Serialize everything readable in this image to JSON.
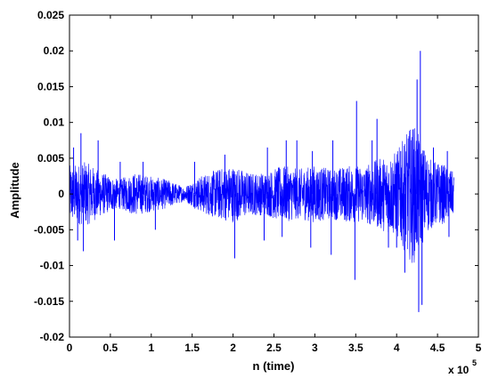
{
  "chart_data": {
    "type": "line",
    "title": "",
    "xlabel": "n (time)",
    "ylabel": "Amplitude",
    "x_multiplier_label": "x 10",
    "x_multiplier_exponent": "5",
    "xlim": [
      0,
      5
    ],
    "ylim": [
      -0.02,
      0.025
    ],
    "x_ticks": [
      "0",
      "0.5",
      "1",
      "1.5",
      "2",
      "2.5",
      "3",
      "3.5",
      "4",
      "4.5",
      "5"
    ],
    "y_ticks": [
      "-0.02",
      "-0.015",
      "-0.01",
      "-0.005",
      "0",
      "0.005",
      "0.01",
      "0.015",
      "0.02",
      "0.025"
    ],
    "grid": false,
    "line_color": "#0000ff",
    "series": [
      {
        "x": [
          0,
          0.2,
          0.4,
          0.6,
          0.8,
          1.0,
          1.2,
          1.4,
          1.6,
          1.8,
          2.0,
          2.2,
          2.4,
          2.6,
          2.8,
          3.0,
          3.2,
          3.4,
          3.6,
          3.8,
          4.0,
          4.2,
          4.4,
          4.6,
          4.7
        ],
        "envelope_max": [
          0.004,
          0.0045,
          0.003,
          0.002,
          0.003,
          0.0025,
          0.002,
          0.001,
          0.0025,
          0.0035,
          0.004,
          0.003,
          0.003,
          0.004,
          0.0035,
          0.004,
          0.0035,
          0.004,
          0.004,
          0.005,
          0.006,
          0.01,
          0.005,
          0.004,
          0.003
        ],
        "envelope_min": [
          -0.004,
          -0.0045,
          -0.003,
          -0.002,
          -0.003,
          -0.0025,
          -0.002,
          -0.001,
          -0.0025,
          -0.0035,
          -0.004,
          -0.003,
          -0.003,
          -0.004,
          -0.0035,
          -0.004,
          -0.0035,
          -0.004,
          -0.004,
          -0.005,
          -0.006,
          -0.01,
          -0.005,
          -0.004,
          -0.003
        ]
      }
    ],
    "spikes": [
      {
        "x": 0.05,
        "y": 0.0065
      },
      {
        "x": 0.1,
        "y": -0.0065
      },
      {
        "x": 0.14,
        "y": 0.0085
      },
      {
        "x": 0.17,
        "y": -0.008
      },
      {
        "x": 0.35,
        "y": 0.0075
      },
      {
        "x": 0.55,
        "y": -0.0065
      },
      {
        "x": 0.62,
        "y": 0.0045
      },
      {
        "x": 0.9,
        "y": 0.0045
      },
      {
        "x": 1.05,
        "y": -0.005
      },
      {
        "x": 1.53,
        "y": 0.0045
      },
      {
        "x": 1.9,
        "y": 0.0055
      },
      {
        "x": 2.02,
        "y": -0.009
      },
      {
        "x": 2.38,
        "y": -0.0065
      },
      {
        "x": 2.42,
        "y": 0.0065
      },
      {
        "x": 2.6,
        "y": -0.006
      },
      {
        "x": 2.65,
        "y": 0.0075
      },
      {
        "x": 2.78,
        "y": 0.0075
      },
      {
        "x": 2.95,
        "y": -0.0075
      },
      {
        "x": 2.97,
        "y": 0.006
      },
      {
        "x": 3.2,
        "y": -0.0085
      },
      {
        "x": 3.22,
        "y": 0.0075
      },
      {
        "x": 3.49,
        "y": -0.012
      },
      {
        "x": 3.51,
        "y": 0.013
      },
      {
        "x": 3.7,
        "y": 0.0075
      },
      {
        "x": 3.76,
        "y": 0.0105
      },
      {
        "x": 3.9,
        "y": -0.0075
      },
      {
        "x": 4.0,
        "y": -0.0075
      },
      {
        "x": 4.05,
        "y": 0.006
      },
      {
        "x": 4.1,
        "y": -0.011
      },
      {
        "x": 4.18,
        "y": 0.0075
      },
      {
        "x": 4.25,
        "y": 0.016
      },
      {
        "x": 4.27,
        "y": -0.0165
      },
      {
        "x": 4.29,
        "y": 0.02
      },
      {
        "x": 4.31,
        "y": -0.0155
      },
      {
        "x": 4.45,
        "y": 0.0065
      },
      {
        "x": 4.62,
        "y": 0.006
      },
      {
        "x": 4.64,
        "y": -0.006
      }
    ]
  }
}
